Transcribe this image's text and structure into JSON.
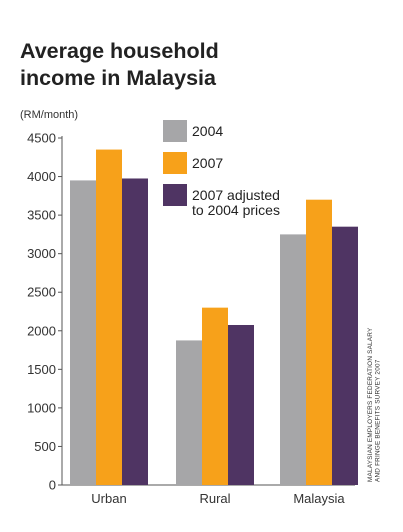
{
  "chart_data": {
    "type": "bar",
    "title_lines": [
      "Average household",
      "income in Malaysia"
    ],
    "unit_label": "(RM/month)",
    "categories": [
      "Urban",
      "Rural",
      "Malaysia"
    ],
    "series": [
      {
        "name": "2004",
        "color": "#a6a6a8",
        "values": [
          3950,
          1875,
          3250
        ]
      },
      {
        "name": "2007",
        "color": "#f7a11a",
        "values": [
          4350,
          2300,
          3700
        ]
      },
      {
        "name": "2007 adjusted to 2004 prices",
        "label_lines": [
          "2007 adjusted",
          "to 2004 prices"
        ],
        "color": "#4f3463",
        "values": [
          3975,
          2075,
          3350
        ]
      }
    ],
    "y_ticks": [
      0,
      500,
      1000,
      1500,
      2000,
      2500,
      3000,
      3500,
      4000,
      4500
    ],
    "ylim": [
      0,
      4500
    ],
    "grid": false,
    "legend_position": "top-center",
    "source_lines": [
      "MALAYSIAN EMPLOYERS FEDERATION SALARY",
      "AND FRINGE BENEFITS SURVEY 2007"
    ]
  }
}
